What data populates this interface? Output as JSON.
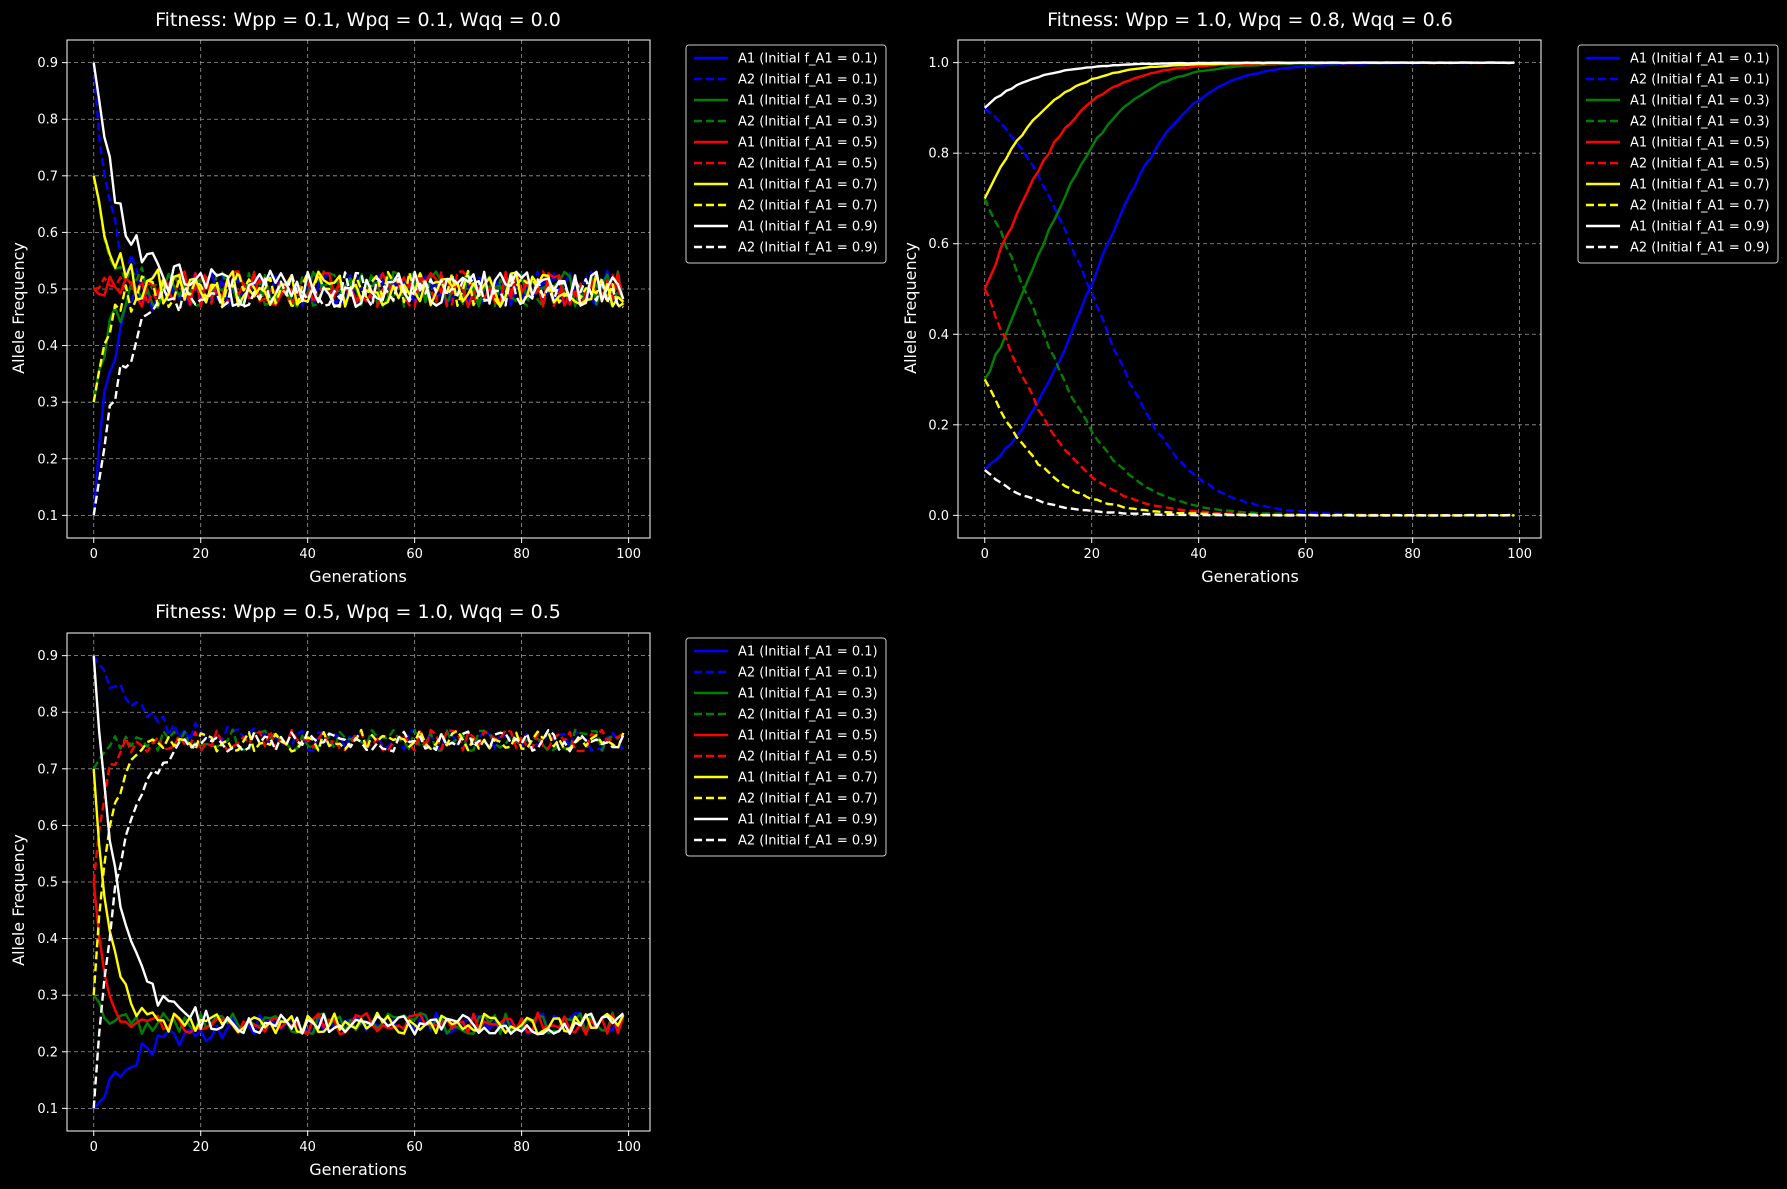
{
  "chart_data": [
    {
      "type": "line",
      "title": "Fitness: Wpp = 0.1, Wpq = 0.1, Wqq = 0.0",
      "xlabel": "Generations",
      "ylabel": "Allele Frequency",
      "xlim": [
        -5,
        104
      ],
      "ylim": [
        0.06,
        0.94
      ],
      "xticks": [
        0,
        20,
        40,
        60,
        80,
        100
      ],
      "yticks": [
        0.1,
        0.2,
        0.3,
        0.4,
        0.5,
        0.6,
        0.7,
        0.8,
        0.9
      ],
      "ytick_labels": [
        "0.1",
        "0.2",
        "0.3",
        "0.4",
        "0.5",
        "0.6",
        "0.7",
        "0.8",
        "0.9"
      ],
      "grid": true,
      "legend_position": "outside upper right",
      "model": "approach",
      "series": [
        {
          "name": "A1 (Initial f_A1 = 0.1)",
          "color": "#0000ff",
          "dash": "solid",
          "start": 0.1,
          "end": 0.5,
          "rate": 0.35,
          "noise": 0.02
        },
        {
          "name": "A2 (Initial f_A1 = 0.1)",
          "color": "#0000ff",
          "dash": "dashed",
          "start": 0.9,
          "end": 0.5,
          "rate": 0.35,
          "noise": 0.02
        },
        {
          "name": "A1 (Initial f_A1 = 0.3)",
          "color": "#008000",
          "dash": "solid",
          "start": 0.3,
          "end": 0.5,
          "rate": 0.35,
          "noise": 0.02
        },
        {
          "name": "A2 (Initial f_A1 = 0.3)",
          "color": "#008000",
          "dash": "dashed",
          "start": 0.7,
          "end": 0.5,
          "rate": 0.35,
          "noise": 0.02
        },
        {
          "name": "A1 (Initial f_A1 = 0.5)",
          "color": "#ff0000",
          "dash": "solid",
          "start": 0.5,
          "end": 0.5,
          "rate": 0.35,
          "noise": 0.02
        },
        {
          "name": "A2 (Initial f_A1 = 0.5)",
          "color": "#ff0000",
          "dash": "dashed",
          "start": 0.5,
          "end": 0.5,
          "rate": 0.35,
          "noise": 0.02
        },
        {
          "name": "A1 (Initial f_A1 = 0.7)",
          "color": "#ffff00",
          "dash": "solid",
          "start": 0.7,
          "end": 0.5,
          "rate": 0.35,
          "noise": 0.02
        },
        {
          "name": "A2 (Initial f_A1 = 0.7)",
          "color": "#ffff00",
          "dash": "dashed",
          "start": 0.3,
          "end": 0.5,
          "rate": 0.35,
          "noise": 0.02
        },
        {
          "name": "A1 (Initial f_A1 = 0.9)",
          "color": "#ffffff",
          "dash": "solid",
          "start": 0.9,
          "end": 0.5,
          "rate": 0.2,
          "noise": 0.02
        },
        {
          "name": "A2 (Initial f_A1 = 0.9)",
          "color": "#ffffff",
          "dash": "dashed",
          "start": 0.1,
          "end": 0.5,
          "rate": 0.2,
          "noise": 0.02
        }
      ]
    },
    {
      "type": "line",
      "title": "Fitness: Wpp = 1.0, Wpq = 0.8, Wqq = 0.6",
      "xlabel": "Generations",
      "ylabel": "Allele Frequency",
      "xlim": [
        -5,
        104
      ],
      "ylim": [
        -0.05,
        1.05
      ],
      "xticks": [
        0,
        20,
        40,
        60,
        80,
        100
      ],
      "yticks": [
        0.0,
        0.2,
        0.4,
        0.6,
        0.8,
        1.0
      ],
      "ytick_labels": [
        "0.0",
        "0.2",
        "0.4",
        "0.6",
        "0.8",
        "1.0"
      ],
      "grid": true,
      "legend_position": "outside upper right",
      "model": "fixation",
      "series": [
        {
          "name": "A1 (Initial f_A1 = 0.1)",
          "color": "#0000ff",
          "dash": "solid",
          "start": 0.1,
          "s": 0.115,
          "noise": 0.006
        },
        {
          "name": "A2 (Initial f_A1 = 0.1)",
          "color": "#0000ff",
          "dash": "dashed",
          "start": 0.1,
          "s": 0.115,
          "noise": 0.006,
          "complement": true
        },
        {
          "name": "A1 (Initial f_A1 = 0.3)",
          "color": "#008000",
          "dash": "solid",
          "start": 0.3,
          "s": 0.115,
          "noise": 0.006
        },
        {
          "name": "A2 (Initial f_A1 = 0.3)",
          "color": "#008000",
          "dash": "dashed",
          "start": 0.3,
          "s": 0.115,
          "noise": 0.006,
          "complement": true
        },
        {
          "name": "A1 (Initial f_A1 = 0.5)",
          "color": "#ff0000",
          "dash": "solid",
          "start": 0.5,
          "s": 0.115,
          "noise": 0.006
        },
        {
          "name": "A2 (Initial f_A1 = 0.5)",
          "color": "#ff0000",
          "dash": "dashed",
          "start": 0.5,
          "s": 0.115,
          "noise": 0.006,
          "complement": true
        },
        {
          "name": "A1 (Initial f_A1 = 0.7)",
          "color": "#ffff00",
          "dash": "solid",
          "start": 0.7,
          "s": 0.115,
          "noise": 0.006
        },
        {
          "name": "A2 (Initial f_A1 = 0.7)",
          "color": "#ffff00",
          "dash": "dashed",
          "start": 0.7,
          "s": 0.115,
          "noise": 0.006,
          "complement": true
        },
        {
          "name": "A1 (Initial f_A1 = 0.9)",
          "color": "#ffffff",
          "dash": "solid",
          "start": 0.9,
          "s": 0.115,
          "noise": 0.006
        },
        {
          "name": "A2 (Initial f_A1 = 0.9)",
          "color": "#ffffff",
          "dash": "dashed",
          "start": 0.9,
          "s": 0.115,
          "noise": 0.006,
          "complement": true
        }
      ]
    },
    {
      "type": "line",
      "title": "Fitness: Wpp = 0.5, Wpq = 1.0, Wqq = 0.5",
      "xlabel": "Generations",
      "ylabel": "Allele Frequency",
      "xlim": [
        -5,
        104
      ],
      "ylim": [
        0.06,
        0.94
      ],
      "xticks": [
        0,
        20,
        40,
        60,
        80,
        100
      ],
      "yticks": [
        0.1,
        0.2,
        0.3,
        0.4,
        0.5,
        0.6,
        0.7,
        0.8,
        0.9
      ],
      "ytick_labels": [
        "0.1",
        "0.2",
        "0.3",
        "0.4",
        "0.5",
        "0.6",
        "0.7",
        "0.8",
        "0.9"
      ],
      "grid": true,
      "legend_position": "outside upper right",
      "model": "approach",
      "series": [
        {
          "name": "A1 (Initial f_A1 = 0.1)",
          "color": "#0000ff",
          "dash": "solid",
          "start": 0.1,
          "end": 0.25,
          "rate": 0.12,
          "noise": 0.012
        },
        {
          "name": "A2 (Initial f_A1 = 0.1)",
          "color": "#0000ff",
          "dash": "dashed",
          "start": 0.9,
          "end": 0.75,
          "rate": 0.12,
          "noise": 0.012
        },
        {
          "name": "A1 (Initial f_A1 = 0.3)",
          "color": "#008000",
          "dash": "solid",
          "start": 0.3,
          "end": 0.25,
          "rate": 0.5,
          "noise": 0.012
        },
        {
          "name": "A2 (Initial f_A1 = 0.3)",
          "color": "#008000",
          "dash": "dashed",
          "start": 0.7,
          "end": 0.75,
          "rate": 0.5,
          "noise": 0.012
        },
        {
          "name": "A1 (Initial f_A1 = 0.5)",
          "color": "#ff0000",
          "dash": "solid",
          "start": 0.5,
          "end": 0.25,
          "rate": 0.5,
          "noise": 0.012
        },
        {
          "name": "A2 (Initial f_A1 = 0.5)",
          "color": "#ff0000",
          "dash": "dashed",
          "start": 0.5,
          "end": 0.75,
          "rate": 0.5,
          "noise": 0.012
        },
        {
          "name": "A1 (Initial f_A1 = 0.7)",
          "color": "#ffff00",
          "dash": "solid",
          "start": 0.7,
          "end": 0.25,
          "rate": 0.35,
          "noise": 0.012
        },
        {
          "name": "A2 (Initial f_A1 = 0.7)",
          "color": "#ffff00",
          "dash": "dashed",
          "start": 0.3,
          "end": 0.75,
          "rate": 0.35,
          "noise": 0.012
        },
        {
          "name": "A1 (Initial f_A1 = 0.9)",
          "color": "#ffffff",
          "dash": "solid",
          "start": 0.9,
          "end": 0.25,
          "rate": 0.22,
          "noise": 0.012
        },
        {
          "name": "A2 (Initial f_A1 = 0.9)",
          "color": "#ffffff",
          "dash": "dashed",
          "start": 0.1,
          "end": 0.75,
          "rate": 0.22,
          "noise": 0.012
        }
      ]
    }
  ]
}
